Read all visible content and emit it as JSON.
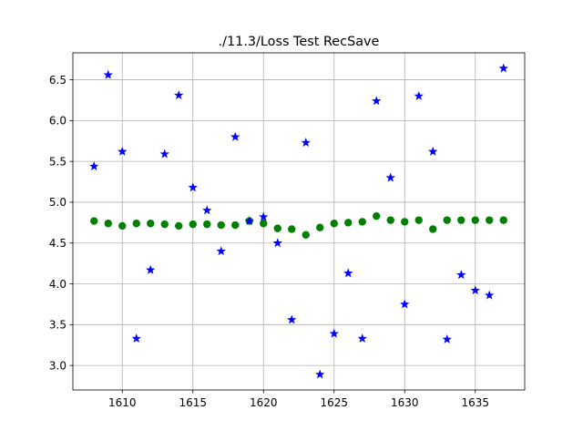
{
  "chart_data": {
    "type": "scatter",
    "title": "./11.3/Loss Test RecSave",
    "xlabel": "",
    "ylabel": "",
    "xlim": [
      1606.5,
      1638.5
    ],
    "ylim": [
      2.7,
      6.83
    ],
    "x_ticks": [
      1610,
      1615,
      1620,
      1625,
      1630,
      1635
    ],
    "y_ticks": [
      3.0,
      3.5,
      4.0,
      4.5,
      5.0,
      5.5,
      6.0,
      6.5
    ],
    "x_tick_labels": [
      "1610",
      "1615",
      "1620",
      "1625",
      "1630",
      "1635"
    ],
    "y_tick_labels": [
      "3.0",
      "3.5",
      "4.0",
      "4.5",
      "5.0",
      "5.5",
      "6.0",
      "6.5"
    ],
    "grid": true,
    "legend": "none",
    "series": [
      {
        "marker": "star",
        "color": "#0000ff",
        "x": [
          1608,
          1609,
          1610,
          1611,
          1612,
          1613,
          1614,
          1615,
          1616,
          1617,
          1618,
          1619,
          1620,
          1621,
          1622,
          1623,
          1624,
          1625,
          1626,
          1627,
          1628,
          1629,
          1630,
          1631,
          1632,
          1633,
          1634,
          1635,
          1636,
          1637
        ],
        "y": [
          5.44,
          6.56,
          5.62,
          3.33,
          4.17,
          5.59,
          6.31,
          5.18,
          4.9,
          4.4,
          5.8,
          4.77,
          4.82,
          4.5,
          3.56,
          5.73,
          2.89,
          3.39,
          4.13,
          3.33,
          6.24,
          5.3,
          3.75,
          6.3,
          5.62,
          3.32,
          4.11,
          3.92,
          3.86,
          6.64
        ]
      },
      {
        "marker": "circle",
        "color": "#008000",
        "x": [
          1608,
          1609,
          1610,
          1611,
          1612,
          1613,
          1614,
          1615,
          1616,
          1617,
          1618,
          1619,
          1620,
          1621,
          1622,
          1623,
          1624,
          1625,
          1626,
          1627,
          1628,
          1629,
          1630,
          1631,
          1632,
          1633,
          1634,
          1635,
          1636,
          1637
        ],
        "y": [
          4.77,
          4.74,
          4.71,
          4.74,
          4.74,
          4.73,
          4.71,
          4.73,
          4.73,
          4.72,
          4.72,
          4.77,
          4.74,
          4.68,
          4.67,
          4.6,
          4.69,
          4.74,
          4.75,
          4.76,
          4.83,
          4.78,
          4.76,
          4.78,
          4.67,
          4.78,
          4.78,
          4.78,
          4.78,
          4.78
        ]
      }
    ]
  }
}
